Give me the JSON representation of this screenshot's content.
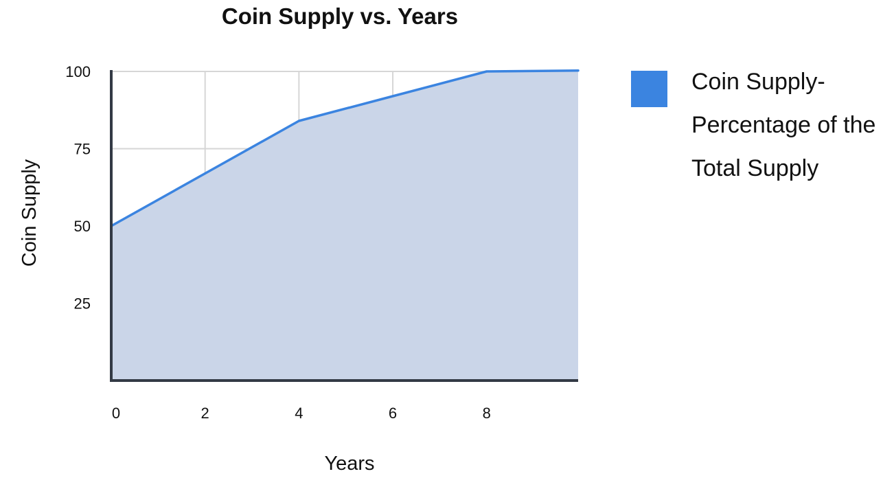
{
  "chart_data": {
    "type": "area",
    "title": "Coin Supply vs. Years",
    "xlabel": "Years",
    "ylabel": "Coin Supply",
    "xlim": [
      0,
      9.95
    ],
    "ylim": [
      0,
      100
    ],
    "x_ticks": [
      0,
      2,
      4,
      6,
      8
    ],
    "y_ticks": [
      25,
      50,
      75,
      100
    ],
    "x_tick_labels": [
      "0",
      "2",
      "4",
      "6",
      "8"
    ],
    "y_tick_labels": [
      "25",
      "50",
      "75",
      "100"
    ],
    "grid": true,
    "legend_position": "right",
    "series": [
      {
        "name": "Coin Supply- Percentage of the Total Supply",
        "legend_lines": [
          "Coin Supply-",
          "Percentage of the",
          "Total Supply"
        ],
        "color": "#3b84e0",
        "fill_color": "#cad5e8",
        "x": [
          0,
          2,
          4,
          6,
          8,
          9.95
        ],
        "y": [
          50,
          67,
          84,
          92,
          100,
          100.3
        ]
      }
    ]
  }
}
